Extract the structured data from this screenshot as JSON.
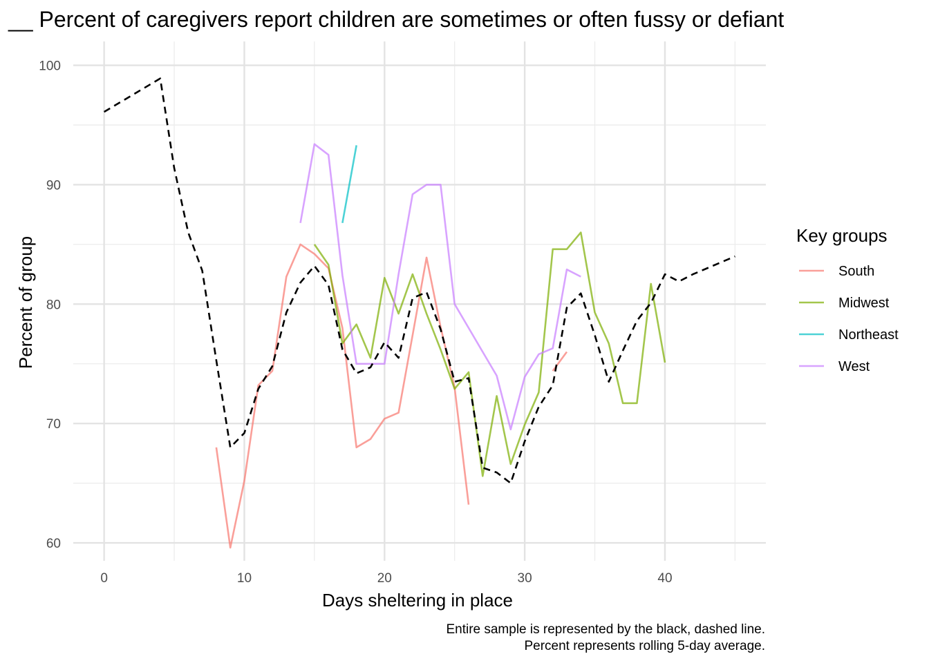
{
  "chart_data": {
    "type": "line",
    "title": "__ Percent of caregivers report children are sometimes or often fussy or defiant",
    "xlabel": "Days sheltering in place",
    "ylabel": "Percent of group",
    "xlim": [
      -2.2,
      47.2
    ],
    "ylim": [
      58.5,
      102
    ],
    "x_ticks": [
      0,
      10,
      20,
      30,
      40
    ],
    "y_ticks": [
      60,
      70,
      80,
      90,
      100
    ],
    "x_tick_labels": [
      "0",
      "10",
      "20",
      "30",
      "40"
    ],
    "y_tick_labels": [
      "60",
      "70",
      "80",
      "90",
      "100"
    ],
    "grid": true,
    "legend": {
      "title": "Key groups",
      "position": "right",
      "entries": [
        "South",
        "Midwest",
        "Northeast",
        "West"
      ]
    },
    "caption_lines": [
      "Entire sample is represented by the black, dashed line.",
      "Percent represents rolling 5-day average."
    ],
    "entire_sample": {
      "color": "#000000",
      "dashed": true,
      "x": [
        0,
        4,
        5,
        6,
        7,
        8,
        9,
        10,
        11,
        12,
        13,
        14,
        15,
        16,
        17,
        18,
        19,
        20,
        21,
        22,
        23,
        24,
        25,
        26,
        27,
        28,
        29,
        30,
        31,
        32,
        33,
        34,
        35,
        36,
        37,
        38,
        39,
        40,
        41,
        42,
        43,
        44,
        45
      ],
      "y": [
        96.1,
        98.9,
        91.4,
        86.0,
        82.8,
        75.3,
        68.0,
        69.2,
        72.9,
        74.8,
        79.3,
        81.8,
        83.2,
        81.6,
        76.2,
        74.2,
        74.7,
        76.8,
        75.5,
        80.5,
        81.0,
        77.9,
        73.5,
        73.8,
        66.3,
        65.9,
        65.0,
        68.5,
        71.4,
        73.2,
        79.7,
        80.9,
        77.4,
        73.5,
        76.1,
        78.6,
        80.1,
        82.5,
        81.9,
        82.5,
        83.0,
        83.5,
        84.0
      ]
    },
    "series": [
      {
        "name": "South",
        "color": "#F8766D",
        "x": [
          8,
          9,
          10,
          11,
          12,
          13,
          14,
          15,
          16,
          17,
          18,
          19,
          20,
          21,
          22,
          23,
          24,
          25,
          26
        ],
        "y": [
          68.0,
          59.6,
          65.2,
          73.2,
          74.4,
          82.3,
          85.0,
          84.2,
          83.0,
          78.0,
          68.0,
          68.7,
          70.4,
          70.9,
          77.4,
          83.9,
          78.1,
          73.0,
          63.2
        ],
        "x2": [
          32,
          33
        ],
        "y2": [
          74.4,
          76.0
        ]
      },
      {
        "name": "Midwest",
        "color": "#7CAE00",
        "x": [
          15,
          16,
          17,
          18,
          19,
          20,
          21,
          22,
          23,
          24,
          25,
          26,
          27,
          28,
          29,
          30,
          31,
          32,
          33,
          34,
          35,
          36,
          37,
          38,
          39,
          40
        ],
        "y": [
          85.0,
          83.3,
          76.7,
          78.3,
          75.5,
          82.2,
          79.2,
          82.5,
          79.2,
          76.2,
          72.9,
          74.3,
          65.6,
          72.3,
          66.6,
          69.9,
          72.6,
          84.6,
          84.6,
          86.0,
          79.3,
          76.7,
          71.7,
          71.7,
          81.7,
          75.1
        ]
      },
      {
        "name": "Northeast",
        "color": "#00BFC4",
        "x": [
          17,
          18
        ],
        "y": [
          86.8,
          93.3
        ]
      },
      {
        "name": "West",
        "color": "#C77CFF",
        "x": [
          14,
          15,
          16,
          17,
          18,
          19,
          20,
          21,
          22,
          23,
          24,
          25,
          26,
          27,
          28,
          29,
          30,
          31,
          32,
          33,
          34
        ],
        "y": [
          86.8,
          93.4,
          92.5,
          82.4,
          75.0,
          75.0,
          75.0,
          82.5,
          89.2,
          90.0,
          90.0,
          80.0,
          78.0,
          76.0,
          74.0,
          69.5,
          73.9,
          75.8,
          76.3,
          82.9,
          82.3
        ]
      }
    ]
  }
}
